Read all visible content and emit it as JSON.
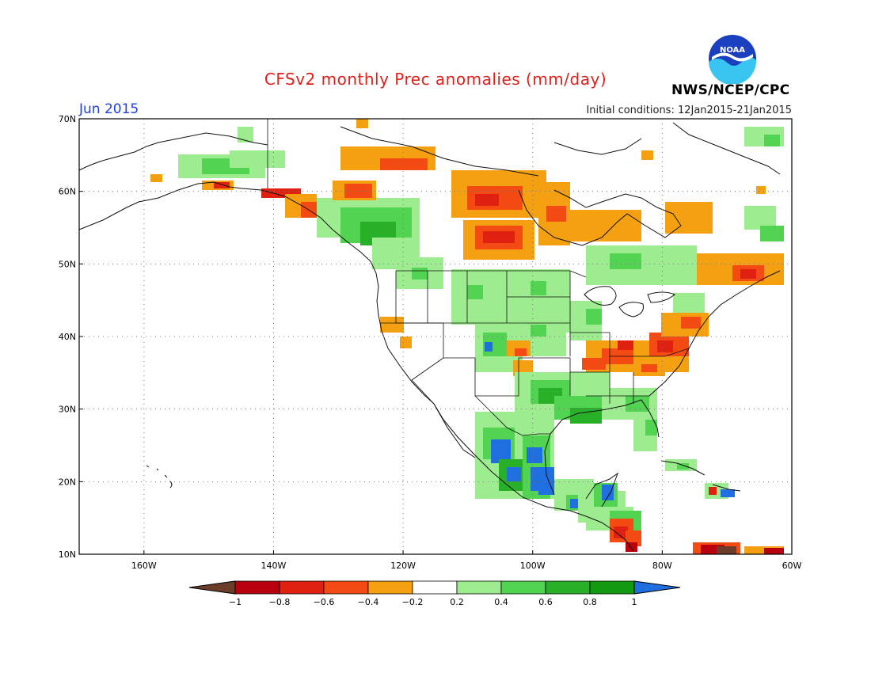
{
  "header": {
    "title": "CFSv2 monthly Prec anomalies (mm/day)",
    "month": "Jun 2015",
    "initial_conditions": "Initial conditions: 12Jan2015-21Jan2015",
    "agency": "NWS/NCEP/CPC",
    "logo_text": "NOAA"
  },
  "map": {
    "lat_labels": [
      "70N",
      "60N",
      "50N",
      "40N",
      "30N",
      "20N",
      "10N"
    ],
    "lat_values": [
      70,
      60,
      50,
      40,
      30,
      20,
      10
    ],
    "lon_labels": [
      "160W",
      "140W",
      "120W",
      "100W",
      "80W",
      "60W"
    ],
    "lon_values": [
      -160,
      -140,
      -120,
      -100,
      -80,
      -60
    ],
    "lon_range": [
      -170,
      -60
    ],
    "lat_range": [
      10,
      70
    ],
    "grid_lines": "dotted"
  },
  "colorbar": {
    "labels": [
      "-1",
      "-0.8",
      "-0.6",
      "-0.4",
      "-0.2",
      "0.2",
      "0.4",
      "0.6",
      "0.8",
      "1"
    ],
    "colors": [
      "#6b3d2a",
      "#b8000e",
      "#e02010",
      "#f44a14",
      "#f5a010",
      "#ffffff",
      "#9eec90",
      "#52d452",
      "#28b028",
      "#139a13",
      "#1f6fe0"
    ]
  },
  "anomaly_colors": {
    "brown": "#6b3d2a",
    "dark_red": "#b8000e",
    "red": "#e02010",
    "orange_red": "#f44a14",
    "orange": "#f5a010",
    "light_green": "#9eec90",
    "green": "#52d452",
    "mid_green": "#28b028",
    "dark_green": "#139a13",
    "blue": "#1f6fe0"
  }
}
